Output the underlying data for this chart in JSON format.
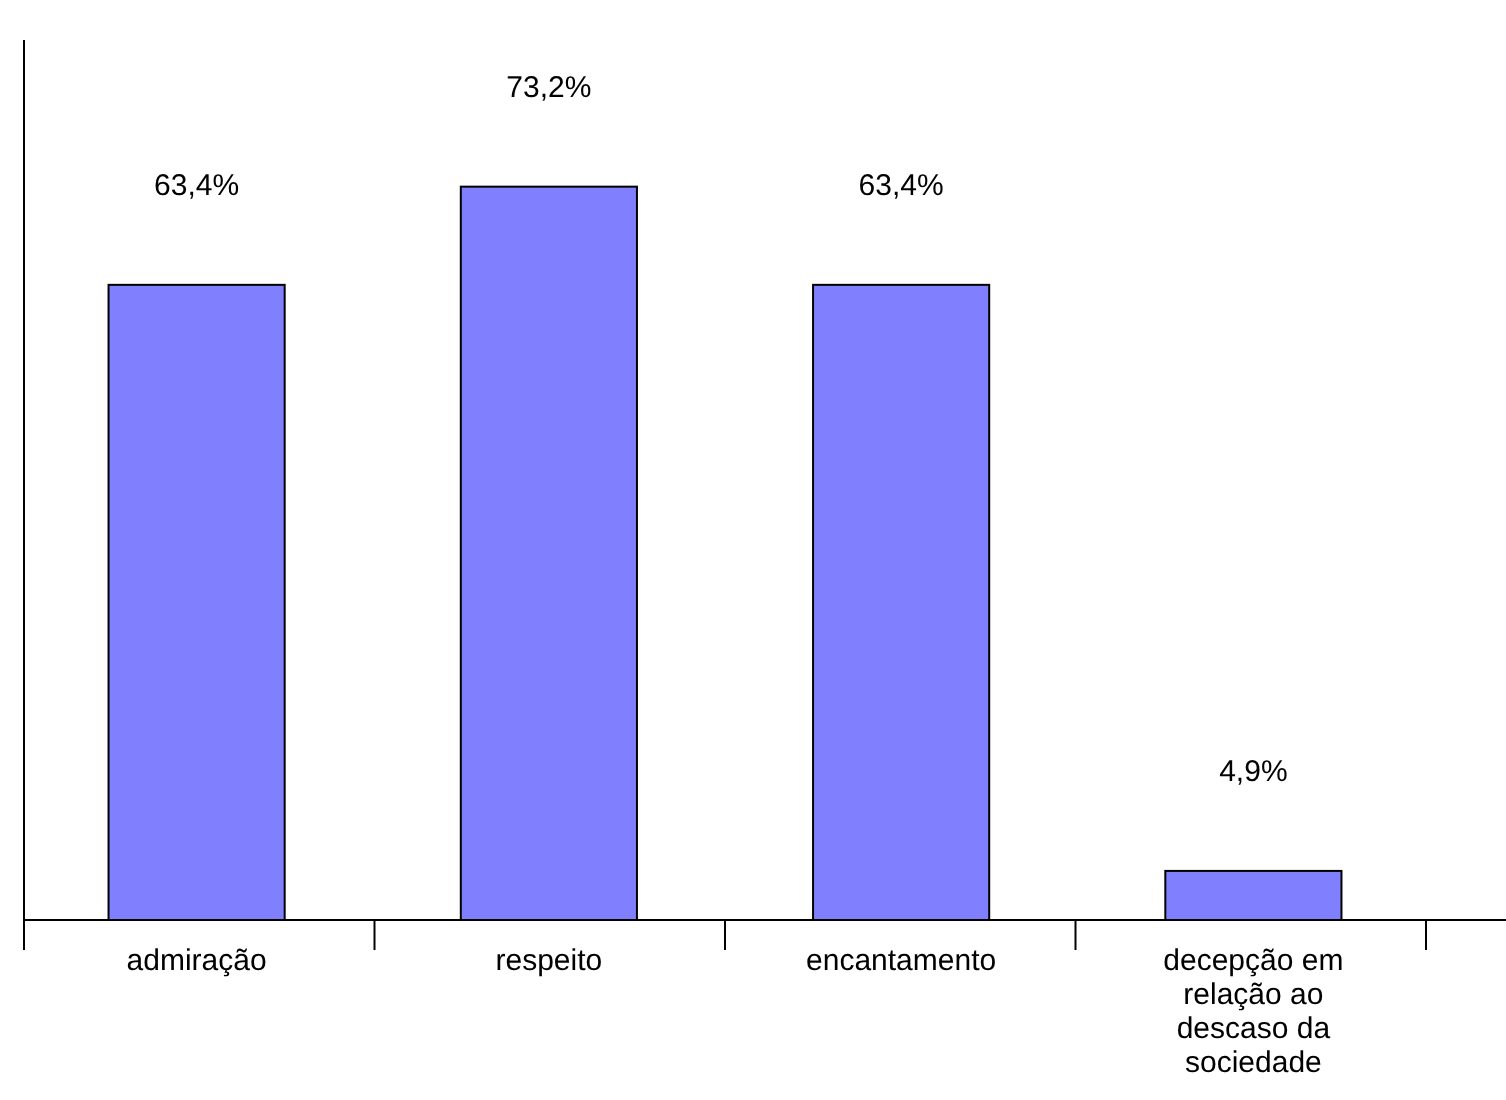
{
  "chart_data": {
    "type": "bar",
    "categories": [
      "admiração",
      "respeito",
      "encantamento",
      "decepção em relação ao descaso da sociedade"
    ],
    "values": [
      63.4,
      73.2,
      63.4,
      4.9
    ],
    "value_labels": [
      "63,4%",
      "73,2%",
      "63,4%",
      "4,9%"
    ],
    "color": "#8080ff"
  }
}
